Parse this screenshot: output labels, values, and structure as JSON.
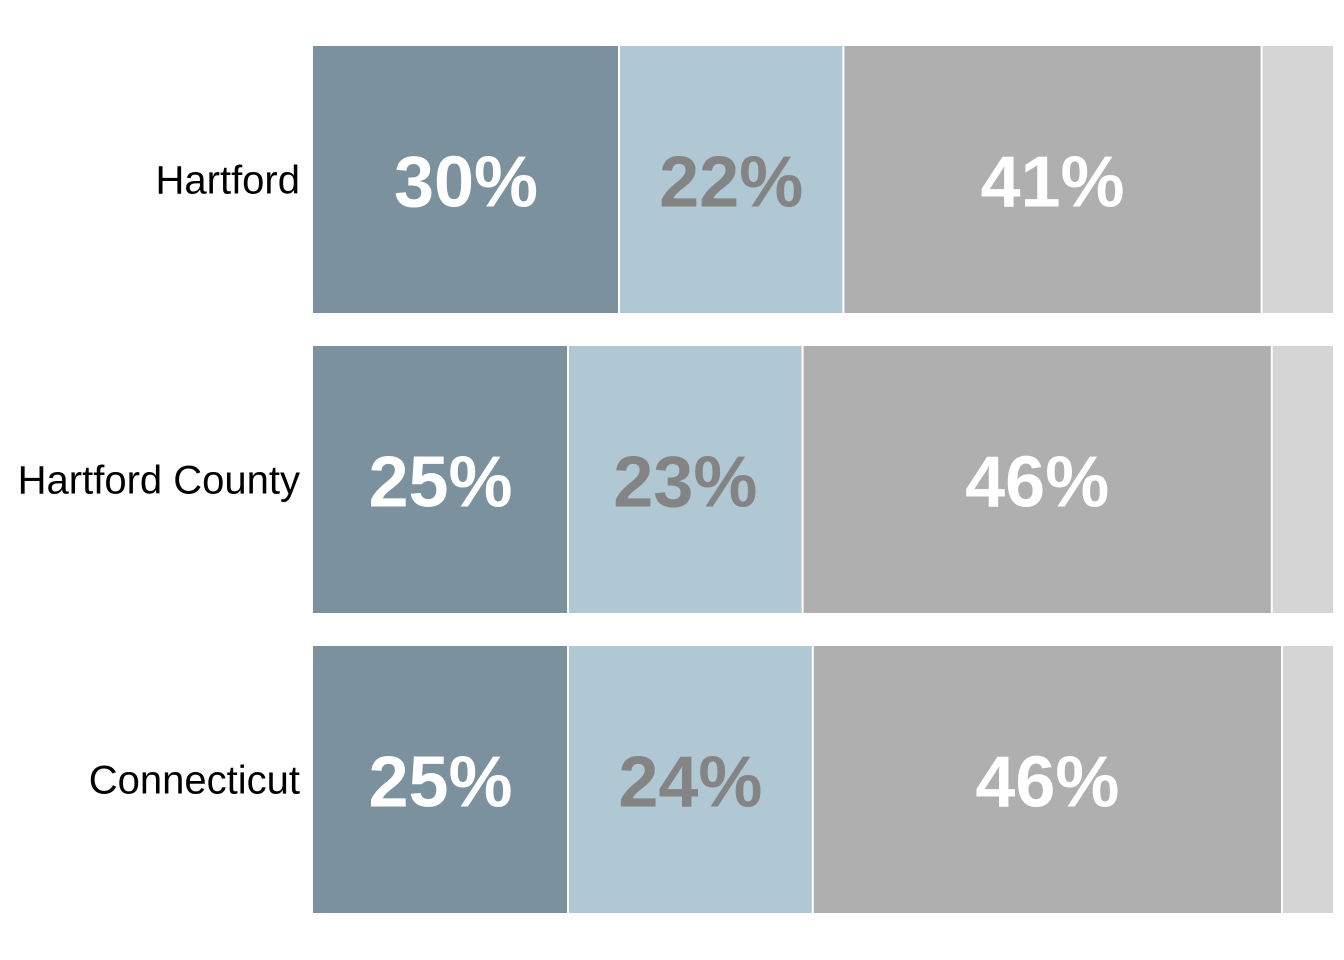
{
  "chart_data": {
    "type": "bar",
    "orientation": "horizontal",
    "stacked": true,
    "percent": true,
    "title": "",
    "xlabel": "",
    "ylabel": "",
    "xlim": [
      0,
      100
    ],
    "grid": false,
    "legend": "none",
    "categories": [
      "Hartford",
      "Hartford County",
      "Connecticut"
    ],
    "series": [
      {
        "values": [
          30,
          25,
          25
        ],
        "labels": [
          "30%",
          "25%",
          "25%"
        ],
        "color": "#7b929e",
        "label_color": "#ffffff"
      },
      {
        "values": [
          22,
          23,
          24
        ],
        "labels": [
          "22%",
          "23%",
          "24%"
        ],
        "color": "#b0c7d4",
        "label_color": "#848484"
      },
      {
        "values": [
          41,
          46,
          46
        ],
        "labels": [
          "41%",
          "46%",
          "46%"
        ],
        "color": "#afafaf",
        "label_color": "#ffffff"
      },
      {
        "values": [
          7,
          6,
          5
        ],
        "labels": [
          "",
          "",
          ""
        ],
        "color": "#d5d5d5",
        "label_color": "#ffffff"
      }
    ]
  }
}
